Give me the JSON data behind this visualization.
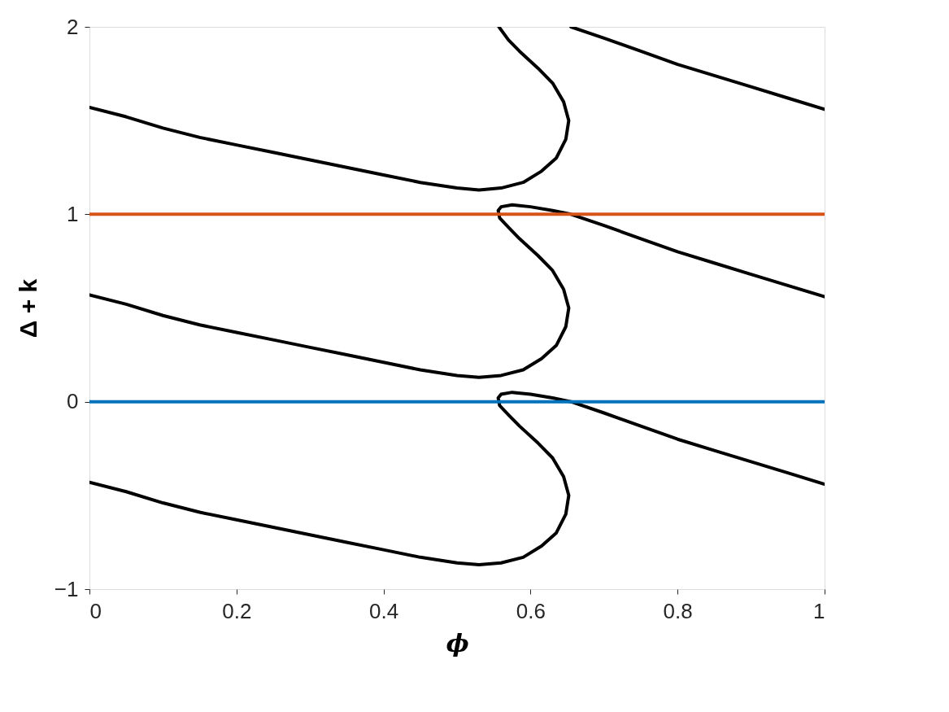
{
  "chart_data": {
    "type": "line",
    "xlabel": "ϕ",
    "ylabel": "Δ + k",
    "xlim": [
      0,
      1
    ],
    "ylim": [
      -1,
      2
    ],
    "xticks": [
      0,
      0.2,
      0.4,
      0.6,
      0.8,
      1
    ],
    "yticks": [
      -1,
      0,
      1,
      2
    ],
    "grid": false,
    "legend": false,
    "marker": "none",
    "line_style": "solid",
    "series": [
      {
        "color": "#000000",
        "x": [
          0,
          0.05,
          0.1,
          0.15,
          0.2,
          0.25,
          0.3,
          0.35,
          0.4,
          0.45,
          0.5,
          0.53,
          0.56,
          0.59,
          0.615,
          0.635,
          0.648,
          0.652,
          0.645,
          0.63,
          0.61,
          0.585,
          0.57,
          0.558,
          0.556,
          0.56,
          0.575,
          0.6,
          0.63,
          0.655,
          0.7,
          0.75,
          0.8,
          0.85,
          0.9,
          0.95,
          1
        ],
        "values": [
          -0.43,
          -0.48,
          -0.54,
          -0.59,
          -0.63,
          -0.67,
          -0.71,
          -0.75,
          -0.79,
          -0.83,
          -0.86,
          -0.87,
          -0.86,
          -0.83,
          -0.77,
          -0.7,
          -0.6,
          -0.5,
          -0.4,
          -0.3,
          -0.22,
          -0.13,
          -0.07,
          -0.02,
          0.02,
          0.04,
          0.05,
          0.04,
          0.02,
          0.0,
          -0.06,
          -0.13,
          -0.2,
          -0.26,
          -0.32,
          -0.38,
          -0.44
        ]
      },
      {
        "color": "#000000",
        "x": [
          0,
          0.05,
          0.1,
          0.15,
          0.2,
          0.25,
          0.3,
          0.35,
          0.4,
          0.45,
          0.5,
          0.53,
          0.56,
          0.59,
          0.615,
          0.635,
          0.648,
          0.652,
          0.645,
          0.63,
          0.61,
          0.585,
          0.57,
          0.558,
          0.556,
          0.56,
          0.575,
          0.6,
          0.63,
          0.655,
          0.7,
          0.75,
          0.8,
          0.85,
          0.9,
          0.95,
          1
        ],
        "values": [
          0.57,
          0.52,
          0.46,
          0.41,
          0.37,
          0.33,
          0.29,
          0.25,
          0.21,
          0.17,
          0.14,
          0.13,
          0.14,
          0.17,
          0.23,
          0.3,
          0.4,
          0.5,
          0.6,
          0.7,
          0.78,
          0.87,
          0.93,
          0.98,
          1.02,
          1.04,
          1.05,
          1.04,
          1.02,
          1.0,
          0.94,
          0.87,
          0.8,
          0.74,
          0.68,
          0.62,
          0.56
        ]
      },
      {
        "color": "#000000",
        "x": [
          0,
          0.05,
          0.1,
          0.15,
          0.2,
          0.25,
          0.3,
          0.35,
          0.4,
          0.45,
          0.5,
          0.53,
          0.56,
          0.59,
          0.615,
          0.635,
          0.648,
          0.652,
          0.645,
          0.63,
          0.61,
          0.585,
          0.57,
          0.557
        ],
        "values": [
          1.57,
          1.52,
          1.46,
          1.41,
          1.37,
          1.33,
          1.29,
          1.25,
          1.21,
          1.17,
          1.14,
          1.13,
          1.14,
          1.17,
          1.23,
          1.3,
          1.4,
          1.5,
          1.6,
          1.7,
          1.78,
          1.87,
          1.93,
          2.0
        ]
      },
      {
        "color": "#000000",
        "x": [
          0.655,
          0.7,
          0.75,
          0.8,
          0.85,
          0.9,
          0.95,
          1
        ],
        "values": [
          2.0,
          1.94,
          1.87,
          1.8,
          1.74,
          1.68,
          1.62,
          1.56
        ]
      },
      {
        "color": "#0072bd",
        "x": [
          0,
          1
        ],
        "values": [
          0,
          0
        ]
      },
      {
        "color": "#d95319",
        "x": [
          0,
          1
        ],
        "values": [
          1,
          1
        ]
      }
    ]
  }
}
